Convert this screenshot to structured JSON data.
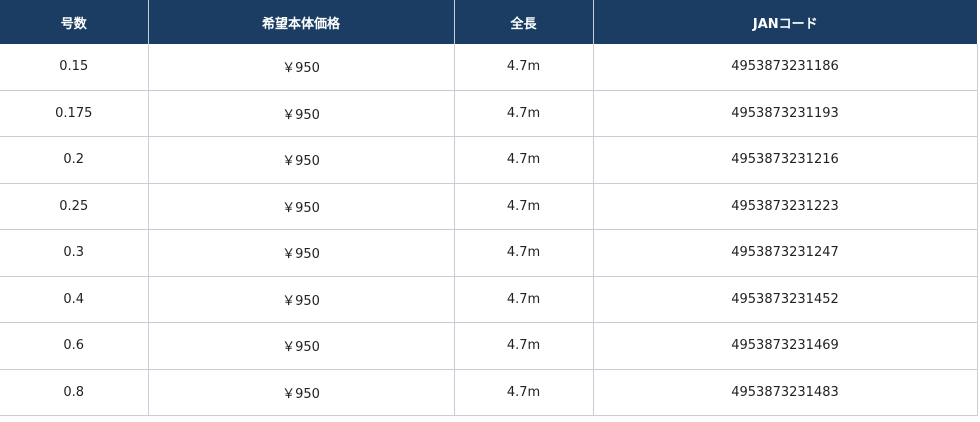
{
  "table": {
    "headers": [
      "号数",
      "希望本体価格",
      "全長",
      "JANコード"
    ],
    "rows": [
      [
        "0.15",
        "￥950",
        "4.7m",
        "4953873231186"
      ],
      [
        "0.175",
        "￥950",
        "4.7m",
        "4953873231193"
      ],
      [
        "0.2",
        "￥950",
        "4.7m",
        "4953873231216"
      ],
      [
        "0.25",
        "￥950",
        "4.7m",
        "4953873231223"
      ],
      [
        "0.3",
        "￥950",
        "4.7m",
        "4953873231247"
      ],
      [
        "0.4",
        "￥950",
        "4.7m",
        "4953873231452"
      ],
      [
        "0.6",
        "￥950",
        "4.7m",
        "4953873231469"
      ],
      [
        "0.8",
        "￥950",
        "4.7m",
        "4953873231483"
      ]
    ]
  },
  "colors": {
    "header_bg": "#1b3d63",
    "header_text": "#ffffff",
    "border": "#c9ced6"
  }
}
